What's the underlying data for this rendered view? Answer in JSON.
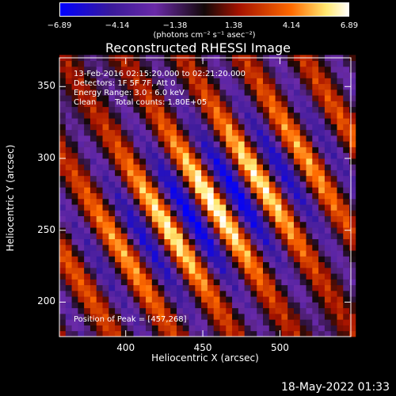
{
  "colorbar": {
    "tick_labels": [
      "−6.89",
      "−4.14",
      "−1.38",
      "1.38",
      "4.14",
      "6.89"
    ],
    "unit_label": "(photons cm⁻² s⁻¹ asec⁻²)",
    "colors": [
      "#0000ff",
      "#3a1a8a",
      "#6a2aa8",
      "#1a0a12",
      "#b01000",
      "#ff5a00",
      "#ffee80",
      "#ffffff"
    ]
  },
  "chart_data": {
    "type": "heatmap",
    "title": "Reconstructed RHESSI Image",
    "xlabel": "Heliocentric X (arcsec)",
    "ylabel": "Heliocentric Y (arcsec)",
    "xlim": [
      357,
      546
    ],
    "ylim": [
      176,
      370
    ],
    "xticks": [
      400,
      450,
      500
    ],
    "yticks": [
      200,
      250,
      300,
      350
    ],
    "color_range": [
      -6.89,
      6.89
    ],
    "peak": [
      457,
      268
    ],
    "wave_angle_deg": 30
  },
  "annotations": {
    "line1": "13-Feb-2016 02:15:20.000 to 02:21:20.000",
    "line2": "Detectors: 1F 5F 7F, Att 0",
    "line3": "Energy Range: 3.0 - 6.0 keV",
    "line4_a": "Clean",
    "line4_b": "Total counts: 1.80E+05",
    "peak_text": "Position of Peak = [457,268]"
  },
  "footer": {
    "date": "18-May-2022 01:33"
  }
}
